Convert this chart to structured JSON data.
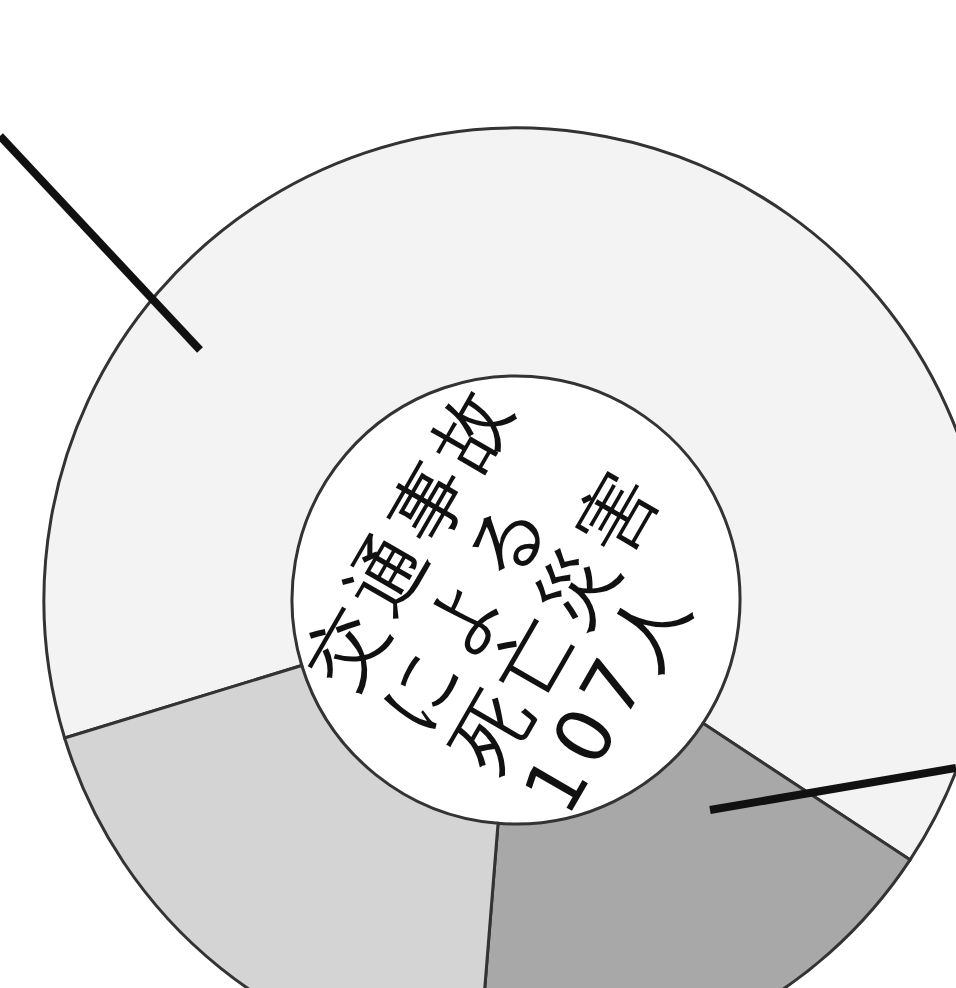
{
  "chart_data": {
    "type": "donut",
    "categories": [
      null,
      null,
      null
    ],
    "values": [
      64,
      17,
      19
    ],
    "colors": [
      "#f3f3f3",
      "#a8a8a8",
      "#d4d4d4"
    ],
    "annotations": [
      "交通事故",
      "による",
      "死亡災害",
      "107人"
    ]
  }
}
